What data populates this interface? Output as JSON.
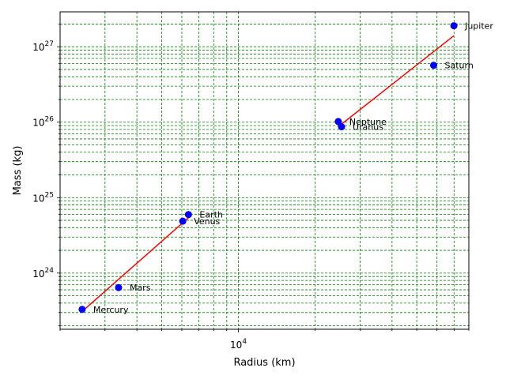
{
  "chart_data": {
    "type": "scatter",
    "xlabel": "Radius (km)",
    "ylabel": "Mass (kg)",
    "xscale": "log",
    "yscale": "log",
    "xlim": [
      2000,
      80000
    ],
    "ylim": [
      1.8e+23,
      2.9e+27
    ],
    "grid": true,
    "grid_style": "dashed",
    "colors": {
      "points": "#0000ff",
      "fit_line": "#ff0000",
      "grid": "#008000"
    },
    "x_ticks": [
      {
        "value": 10000,
        "label": "10^4"
      }
    ],
    "y_ticks": [
      {
        "value": 1e+24,
        "label": "10^24"
      },
      {
        "value": 1e+25,
        "label": "10^25"
      },
      {
        "value": 1e+26,
        "label": "10^26"
      },
      {
        "value": 1e+27,
        "label": "10^27"
      }
    ],
    "points": [
      {
        "name": "Mercury",
        "x": 2440,
        "y": 3.3e+23
      },
      {
        "name": "Venus",
        "x": 6052,
        "y": 4.87e+24
      },
      {
        "name": "Earth",
        "x": 6371,
        "y": 5.97e+24
      },
      {
        "name": "Mars",
        "x": 3390,
        "y": 6.42e+23
      },
      {
        "name": "Jupiter",
        "x": 69911,
        "y": 1.898e+27
      },
      {
        "name": "Saturn",
        "x": 58232,
        "y": 5.68e+26
      },
      {
        "name": "Uranus",
        "x": 25362,
        "y": 8.68e+25
      },
      {
        "name": "Neptune",
        "x": 24622,
        "y": 1.02e+26
      }
    ],
    "fit_lines": [
      {
        "x": [
          2440,
          6371
        ],
        "y": [
          3.1e+23,
          5.4e+24
        ]
      },
      {
        "x": [
          24622,
          69911
        ],
        "y": [
          8.7e+25,
          1.4e+27
        ]
      }
    ]
  }
}
